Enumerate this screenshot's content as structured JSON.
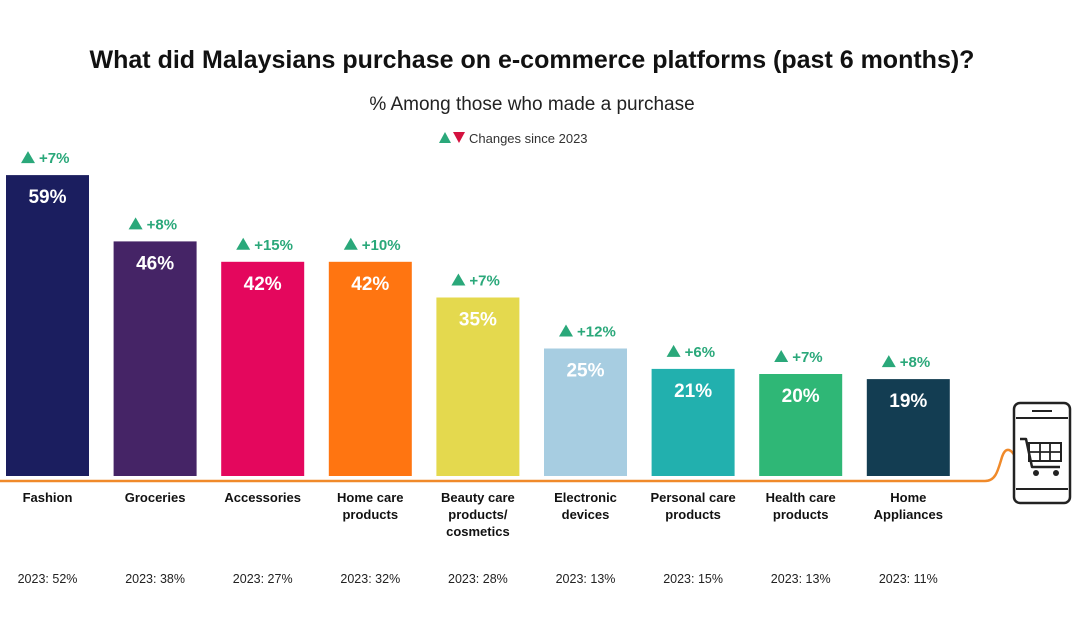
{
  "chart_data": {
    "type": "bar",
    "title": "What did Malaysians purchase on e-commerce platforms (past 6 months)?",
    "subtitle": "% Among those who made a purchase",
    "legend": "Changes since 2023",
    "ylim": [
      0,
      60
    ],
    "unit": "%",
    "categories": [
      [
        "Fashion"
      ],
      [
        "Groceries"
      ],
      [
        "Accessories"
      ],
      [
        "Home care",
        "products"
      ],
      [
        "Beauty care",
        "products/",
        "cosmetics"
      ],
      [
        "Electronic",
        "devices"
      ],
      [
        "Personal care",
        "products"
      ],
      [
        "Health care",
        "products"
      ],
      [
        "Home",
        "Appliances"
      ]
    ],
    "values": [
      59,
      46,
      42,
      42,
      35,
      25,
      21,
      20,
      19
    ],
    "value_labels": [
      "59%",
      "46%",
      "42%",
      "42%",
      "35%",
      "25%",
      "21%",
      "20%",
      "19%"
    ],
    "changes": [
      "+7%",
      "+8%",
      "+15%",
      "+10%",
      "+7%",
      "+12%",
      "+6%",
      "+7%",
      "+8%"
    ],
    "previous_labels": [
      "2023: 52%",
      "2023: 38%",
      "2023: 27%",
      "2023: 32%",
      "2023: 28%",
      "2023: 13%",
      "2023: 15%",
      "2023: 13%",
      "2023: 11%"
    ],
    "colors": [
      "#1b1e5f",
      "#452466",
      "#e4075d",
      "#ff7511",
      "#e4d94e",
      "#a7cde1",
      "#22b0ae",
      "#2fb776",
      "#133d52"
    ]
  },
  "colors": {
    "up": "#2aa87a",
    "down": "#d4123f",
    "baseline": "#f08a2a",
    "icon": "#222222"
  },
  "icons": {
    "cart": "shopping-cart-phone-icon"
  }
}
